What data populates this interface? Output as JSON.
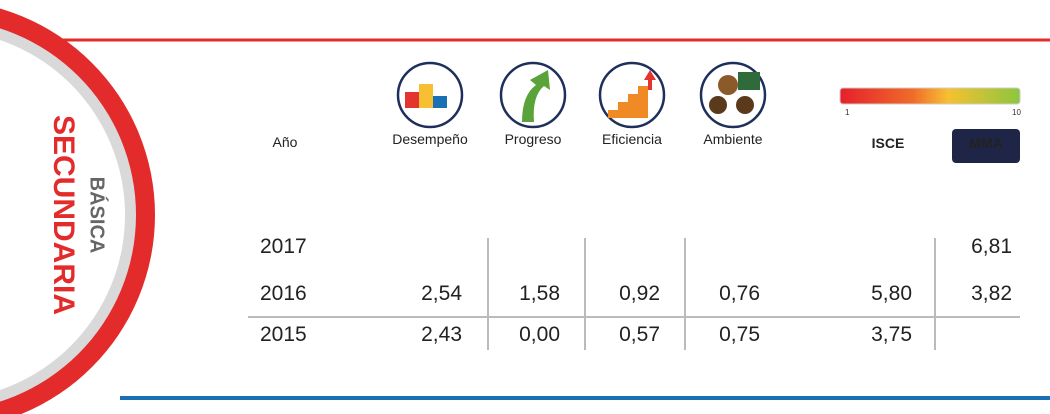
{
  "side": {
    "level": "BÁSICA",
    "title": "SECUNDARIA"
  },
  "scale": {
    "min_label": "1",
    "max_label": "10"
  },
  "table": {
    "headers": [
      "Año",
      "Desempeño",
      "Progreso",
      "Eficiencia",
      "Ambiente",
      "ISCE",
      "MMA"
    ],
    "rows": [
      [
        "2017",
        null,
        null,
        null,
        null,
        null,
        "6,81"
      ],
      [
        "2016",
        "2,54",
        "1,58",
        "0,92",
        "0,76",
        "5,80",
        "3,82"
      ],
      [
        "2015",
        "2,43",
        "0,00",
        "0,57",
        "0,75",
        "3,75",
        null
      ]
    ]
  }
}
